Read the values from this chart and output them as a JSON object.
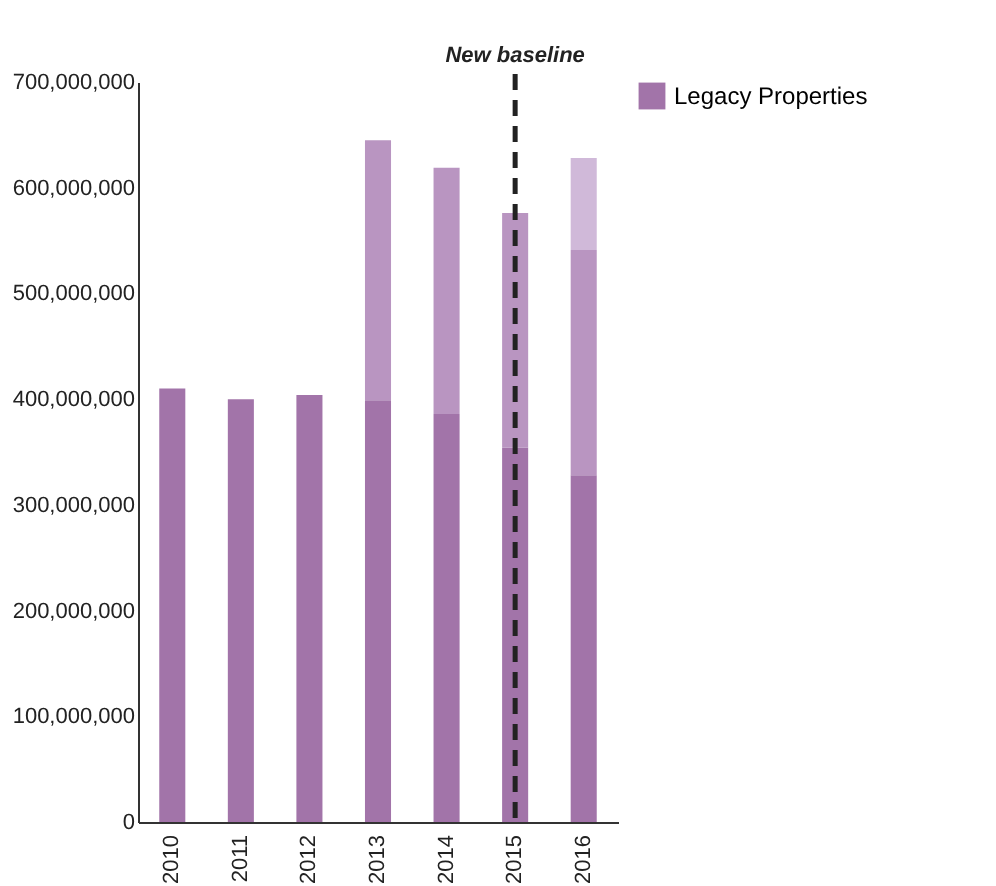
{
  "chart_data": {
    "type": "bar",
    "stacked": true,
    "categories": [
      "2010",
      "2011",
      "2012",
      "2013",
      "2014",
      "2015",
      "2016"
    ],
    "series": [
      {
        "name": "Legacy Properties",
        "color": "#a274a9",
        "values": [
          410000000,
          400000000,
          404000000,
          399000000,
          386000000,
          354000000,
          328000000
        ]
      },
      {
        "color": "#b995c1",
        "values": [
          null,
          null,
          null,
          246000000,
          233000000,
          222000000,
          213000000
        ]
      },
      {
        "color": "#d0b9d9",
        "values": [
          null,
          null,
          null,
          null,
          null,
          null,
          87000000
        ]
      }
    ],
    "ylim": [
      0,
      700000000
    ],
    "yticks": [
      0,
      {
        "value": 100000000,
        "label": "100,000,000"
      },
      {
        "value": 200000000,
        "label": "200,000,000"
      },
      {
        "value": 300000000,
        "label": "300,000,000"
      },
      {
        "value": 400000000,
        "label": "400,000,000"
      },
      {
        "value": 500000000,
        "label": "500,000,000"
      },
      {
        "value": 600000000,
        "label": "600,000,000"
      },
      {
        "value": 700000000,
        "label": "700,000,000"
      }
    ],
    "ref_lines": [
      {
        "axis": "x",
        "value": "2015",
        "label": "New baseline",
        "color": "#222222",
        "line_style": "dashed"
      }
    ],
    "grid": false,
    "legend": "right"
  }
}
